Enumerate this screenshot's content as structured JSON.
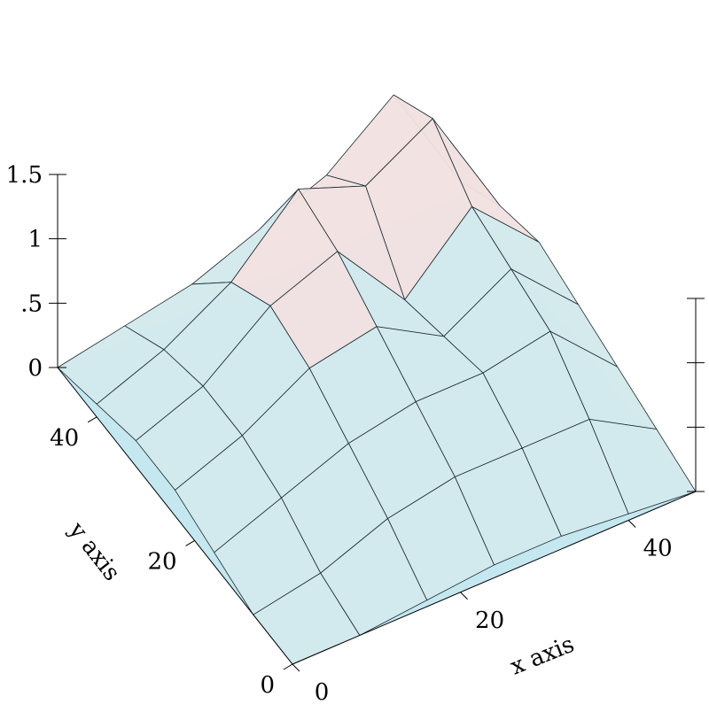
{
  "chart_data": {
    "type": "surface",
    "x_label": "x axis",
    "y_label": "y axis",
    "x": [
      0,
      8,
      16,
      24,
      32,
      40,
      48
    ],
    "y": [
      0,
      8,
      16,
      24,
      32,
      40,
      48
    ],
    "z": [
      [
        0,
        0,
        0.05,
        0.1,
        0.1,
        0.05,
        0
      ],
      [
        0,
        0.1,
        0.3,
        0.4,
        0.4,
        0.4,
        0.1
      ],
      [
        0.1,
        0.3,
        0.5,
        0.6,
        0.6,
        0.7,
        0.2
      ],
      [
        0.2,
        0.4,
        0.7,
        0.8,
        0.5,
        0.8,
        0.3
      ],
      [
        0.2,
        0.4,
        0.8,
        1.0,
        0.4,
        0.9,
        0.4
      ],
      [
        0.1,
        0.3,
        0.6,
        1.1,
        0.9,
        1.2,
        0.3
      ],
      [
        0,
        0.1,
        0.2,
        0.4,
        0.6,
        1.0,
        0.1
      ]
    ],
    "xlim": [
      0,
      48
    ],
    "ylim": [
      0,
      48
    ],
    "zlim": [
      0,
      1.5
    ],
    "xticks": [
      0,
      20,
      40
    ],
    "yticks": [
      0,
      20,
      40
    ],
    "zticks": [
      0,
      {
        "value": 0.5,
        "label": ".5"
      },
      1,
      1.5
    ],
    "color": "#d3e9ec",
    "high_color": "#f2e0e0",
    "plane_color": "#c4e7f0"
  }
}
